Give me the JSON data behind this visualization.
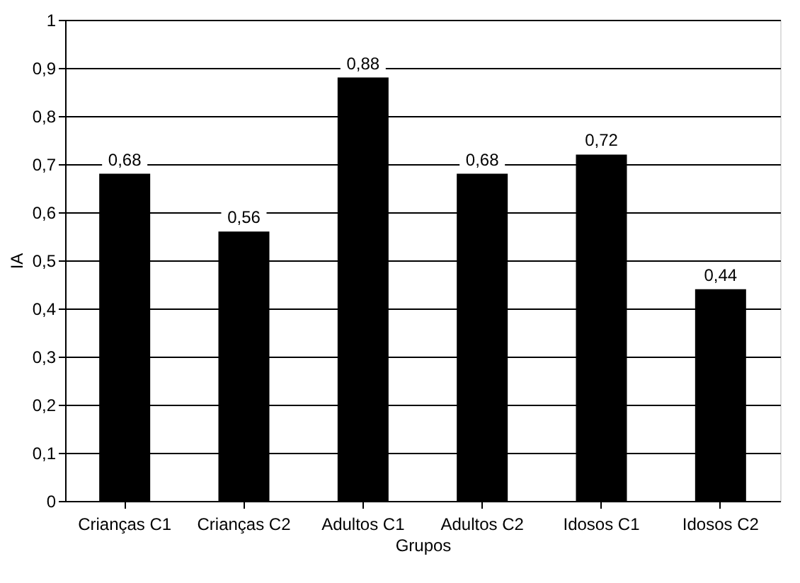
{
  "chart_data": {
    "type": "bar",
    "xlabel": "Grupos",
    "ylabel": "IA",
    "categories": [
      "Crianças C1",
      "Crianças C2",
      "Adultos C1",
      "Adultos C2",
      "Idosos C1",
      "Idosos C2"
    ],
    "values": [
      0.68,
      0.56,
      0.88,
      0.68,
      0.72,
      0.44
    ],
    "value_labels": [
      "0,68",
      "0,56",
      "0,88",
      "0,68",
      "0,72",
      "0,44"
    ],
    "color": "#000000",
    "ylim": [
      0,
      1
    ],
    "yticks": [
      0,
      {
        "value": 0.1,
        "label": "0,1"
      },
      {
        "value": 0.2,
        "label": "0,2"
      },
      {
        "value": 0.3,
        "label": "0,3"
      },
      {
        "value": 0.4,
        "label": "0,4"
      },
      {
        "value": 0.5,
        "label": "0,5"
      },
      {
        "value": 0.6,
        "label": "0,6"
      },
      {
        "value": 0.7,
        "label": "0,7"
      },
      {
        "value": 0.8,
        "label": "0,8"
      },
      {
        "value": 0.9,
        "label": "0,9"
      },
      1
    ],
    "grid": "y"
  }
}
